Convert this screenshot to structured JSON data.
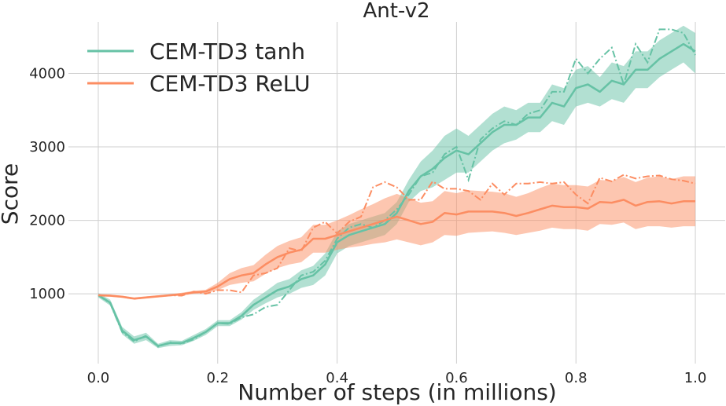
{
  "chart_data": {
    "type": "line",
    "title": "Ant-v2",
    "xlabel": "Number of steps (in millions)",
    "ylabel": "Score",
    "xlim": [
      -0.05,
      1.05
    ],
    "ylim": [
      50,
      4700
    ],
    "xticks": [
      0.0,
      0.2,
      0.4,
      0.6,
      0.8,
      1.0
    ],
    "xtick_labels": [
      "0.0",
      "0.2",
      "0.4",
      "0.6",
      "0.8",
      "1.0"
    ],
    "yticks": [
      1000,
      2000,
      3000,
      4000
    ],
    "ytick_labels": [
      "1000",
      "2000",
      "3000",
      "4000"
    ],
    "grid": true,
    "legend_position": "top-left",
    "series": [
      {
        "name": "CEM-TD3 tanh",
        "color": "#66c2a5",
        "x": [
          0.0,
          0.02,
          0.04,
          0.06,
          0.08,
          0.1,
          0.12,
          0.14,
          0.16,
          0.18,
          0.2,
          0.22,
          0.24,
          0.26,
          0.28,
          0.3,
          0.32,
          0.34,
          0.36,
          0.38,
          0.4,
          0.42,
          0.44,
          0.46,
          0.48,
          0.5,
          0.52,
          0.54,
          0.56,
          0.58,
          0.6,
          0.62,
          0.64,
          0.66,
          0.68,
          0.7,
          0.72,
          0.74,
          0.76,
          0.78,
          0.8,
          0.82,
          0.84,
          0.86,
          0.88,
          0.9,
          0.92,
          0.94,
          0.96,
          0.98,
          1.0
        ],
        "mean": [
          980,
          880,
          500,
          370,
          420,
          290,
          330,
          330,
          400,
          480,
          600,
          600,
          700,
          850,
          950,
          1050,
          1100,
          1200,
          1250,
          1400,
          1700,
          1800,
          1850,
          1900,
          1950,
          2100,
          2400,
          2600,
          2700,
          2850,
          2950,
          2900,
          3050,
          3200,
          3300,
          3300,
          3400,
          3400,
          3600,
          3550,
          3800,
          3850,
          3750,
          3900,
          3850,
          4050,
          4050,
          4200,
          4300,
          4400,
          4300
        ],
        "lower": [
          950,
          840,
          450,
          320,
          370,
          260,
          290,
          300,
          360,
          440,
          560,
          560,
          650,
          780,
          870,
          950,
          1000,
          1080,
          1120,
          1250,
          1550,
          1650,
          1700,
          1750,
          1800,
          1950,
          2250,
          2400,
          2450,
          2550,
          2650,
          2650,
          2800,
          2950,
          3050,
          3100,
          3200,
          3200,
          3350,
          3300,
          3550,
          3600,
          3550,
          3650,
          3600,
          3800,
          3800,
          3950,
          4050,
          4150,
          4000
        ],
        "upper": [
          1010,
          920,
          550,
          420,
          470,
          320,
          370,
          360,
          440,
          520,
          640,
          640,
          750,
          920,
          1030,
          1150,
          1200,
          1320,
          1380,
          1550,
          1850,
          1950,
          2000,
          2050,
          2100,
          2250,
          2550,
          2800,
          2950,
          3150,
          3250,
          3150,
          3300,
          3450,
          3550,
          3500,
          3600,
          3600,
          3850,
          3800,
          4050,
          4100,
          3950,
          4150,
          4100,
          4300,
          4300,
          4450,
          4550,
          4650,
          4550
        ],
        "best": [
          980,
          870,
          480,
          350,
          430,
          280,
          340,
          320,
          380,
          480,
          600,
          590,
          680,
          720,
          820,
          850,
          1050,
          1250,
          1300,
          1450,
          1750,
          1900,
          1950,
          1900,
          2000,
          2150,
          2350,
          2600,
          2650,
          2900,
          3000,
          2550,
          3100,
          3250,
          3350,
          3300,
          3450,
          3500,
          3750,
          3750,
          4200,
          4000,
          4200,
          4350,
          3850,
          4400,
          4150,
          4600,
          4600,
          4550,
          4250
        ]
      },
      {
        "name": "CEM-TD3 ReLU",
        "color": "#fc8d62",
        "x": [
          0.0,
          0.02,
          0.04,
          0.06,
          0.08,
          0.1,
          0.12,
          0.14,
          0.16,
          0.18,
          0.2,
          0.22,
          0.24,
          0.26,
          0.28,
          0.3,
          0.32,
          0.34,
          0.36,
          0.38,
          0.4,
          0.42,
          0.44,
          0.46,
          0.48,
          0.5,
          0.52,
          0.54,
          0.56,
          0.58,
          0.6,
          0.62,
          0.64,
          0.66,
          0.68,
          0.7,
          0.72,
          0.74,
          0.76,
          0.78,
          0.8,
          0.82,
          0.84,
          0.86,
          0.88,
          0.9,
          0.92,
          0.94,
          0.96,
          0.98,
          1.0
        ],
        "mean": [
          980,
          975,
          960,
          935,
          950,
          965,
          980,
          995,
          1020,
          1030,
          1100,
          1200,
          1250,
          1280,
          1400,
          1500,
          1560,
          1600,
          1750,
          1750,
          1800,
          1850,
          1900,
          1950,
          2000,
          2050,
          2000,
          1950,
          1980,
          2100,
          2080,
          2120,
          2120,
          2120,
          2100,
          2060,
          2100,
          2150,
          2200,
          2180,
          2180,
          2160,
          2250,
          2240,
          2280,
          2200,
          2250,
          2260,
          2230,
          2260,
          2260
        ],
        "lower": [
          965,
          960,
          945,
          920,
          935,
          950,
          965,
          975,
          1000,
          1005,
          1050,
          1120,
          1150,
          1170,
          1270,
          1350,
          1400,
          1430,
          1560,
          1560,
          1600,
          1630,
          1650,
          1680,
          1700,
          1740,
          1700,
          1660,
          1700,
          1800,
          1790,
          1830,
          1840,
          1850,
          1830,
          1800,
          1830,
          1860,
          1900,
          1880,
          1880,
          1860,
          1950,
          1940,
          1970,
          1880,
          1920,
          1920,
          1900,
          1920,
          1920
        ],
        "upper": [
          995,
          990,
          975,
          950,
          965,
          980,
          995,
          1015,
          1040,
          1055,
          1150,
          1280,
          1350,
          1390,
          1530,
          1650,
          1720,
          1770,
          1940,
          1940,
          2000,
          2070,
          2150,
          2220,
          2300,
          2360,
          2300,
          2240,
          2260,
          2400,
          2370,
          2410,
          2400,
          2390,
          2370,
          2320,
          2370,
          2440,
          2500,
          2480,
          2480,
          2460,
          2550,
          2540,
          2590,
          2520,
          2580,
          2600,
          2560,
          2600,
          2600
        ],
        "best": [
          980,
          975,
          960,
          930,
          950,
          965,
          980,
          975,
          1030,
          1000,
          1050,
          1050,
          1020,
          1250,
          1280,
          1350,
          1620,
          1580,
          1900,
          1980,
          1820,
          1980,
          2050,
          2450,
          2520,
          2450,
          2280,
          2280,
          2530,
          2430,
          2430,
          2400,
          2280,
          2500,
          2350,
          2500,
          2500,
          2520,
          2500,
          2520,
          2350,
          2230,
          2580,
          2530,
          2620,
          2570,
          2600,
          2610,
          2560,
          2540,
          2500
        ]
      }
    ]
  }
}
